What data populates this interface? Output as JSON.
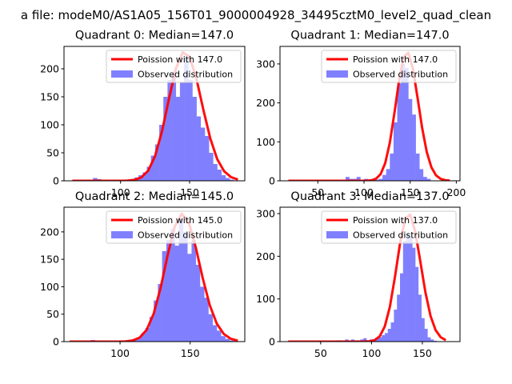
{
  "figure": {
    "suptitle": "a file: modeM0/AS1A05_156T01_9000004928_34495cztM0_level2_quad_clean"
  },
  "colors": {
    "poisson": "#ff0000",
    "observed": "#8080ff",
    "observed_edge": "#6666ff"
  },
  "chart_data": [
    {
      "type": "bar",
      "title": "Quadrant 0: Median=147.0",
      "median": 147.0,
      "xlim": [
        59,
        190
      ],
      "ylim": [
        0,
        240
      ],
      "xticks": [
        100,
        150
      ],
      "yticks": [
        0,
        50,
        100,
        150,
        200
      ],
      "legend": {
        "placement": "top-right",
        "entries": [
          "Poission with 147.0",
          "Observed distribution"
        ]
      },
      "histogram": {
        "bin_start": 65,
        "bin_width": 3,
        "counts": [
          0,
          0,
          0,
          0,
          0,
          5,
          3,
          0,
          0,
          0,
          0,
          0,
          0,
          0,
          3,
          6,
          10,
          15,
          25,
          45,
          65,
          100,
          150,
          180,
          195,
          150,
          175,
          220,
          180,
          150,
          115,
          95,
          80,
          50,
          30,
          20,
          10,
          5,
          2,
          0,
          0
        ]
      },
      "poisson_curve": {
        "lambda": 147.0,
        "scale": 231,
        "x_range": [
          65,
          187
        ]
      }
    },
    {
      "type": "bar",
      "title": "Quadrant 1: Median=147.0",
      "median": 147.0,
      "xlim": [
        9,
        204
      ],
      "ylim": [
        0,
        345
      ],
      "xticks": [
        50,
        100,
        150,
        200
      ],
      "yticks": [
        0,
        100,
        200,
        300
      ],
      "legend": {
        "placement": "top-right",
        "entries": [
          "Poission with 147.0",
          "Observed distribution"
        ]
      },
      "histogram": {
        "bin_start": 80,
        "bin_width": 4,
        "counts": [
          10,
          5,
          5,
          10,
          0,
          5,
          0,
          0,
          3,
          5,
          15,
          30,
          70,
          150,
          250,
          300,
          290,
          210,
          170,
          70,
          30,
          10,
          5,
          0
        ]
      },
      "poisson_curve": {
        "lambda": 147.0,
        "scale": 331,
        "x_range": [
          18,
          193
        ]
      }
    },
    {
      "type": "bar",
      "title": "Quadrant 2: Median=145.0",
      "median": 145.0,
      "xlim": [
        60,
        189
      ],
      "ylim": [
        0,
        245
      ],
      "xticks": [
        100,
        150
      ],
      "yticks": [
        0,
        50,
        100,
        150,
        200
      ],
      "legend": {
        "placement": "top-right",
        "entries": [
          "Poission with 145.0",
          "Observed distribution"
        ]
      },
      "histogram": {
        "bin_start": 64,
        "bin_width": 3,
        "counts": [
          0,
          0,
          0,
          0,
          0,
          3,
          2,
          0,
          0,
          0,
          0,
          0,
          0,
          0,
          2,
          5,
          8,
          15,
          25,
          45,
          75,
          105,
          165,
          185,
          205,
          175,
          225,
          200,
          160,
          185,
          140,
          100,
          80,
          50,
          30,
          20,
          10,
          5,
          2,
          0,
          0
        ]
      },
      "poisson_curve": {
        "lambda": 145.0,
        "scale": 233,
        "x_range": [
          64,
          186
        ]
      }
    },
    {
      "type": "bar",
      "title": "Quadrant 3: Median=137.0",
      "median": 137.0,
      "xlim": [
        10,
        187
      ],
      "ylim": [
        0,
        315
      ],
      "xticks": [
        50,
        100,
        150
      ],
      "yticks": [
        0,
        100,
        200,
        300
      ],
      "legend": {
        "placement": "top-right",
        "entries": [
          "Poission with 137.0",
          "Observed distribution"
        ]
      },
      "histogram": {
        "bin_start": 56,
        "bin_width": 3,
        "counts": [
          2,
          2,
          2,
          3,
          3,
          2,
          5,
          3,
          5,
          3,
          3,
          5,
          8,
          3,
          5,
          3,
          8,
          10,
          15,
          20,
          30,
          45,
          75,
          110,
          160,
          235,
          255,
          245,
          220,
          175,
          110,
          55,
          30,
          10,
          5,
          2
        ]
      },
      "poisson_curve": {
        "lambda": 137.0,
        "scale": 300,
        "x_range": [
          18,
          176
        ]
      }
    }
  ]
}
